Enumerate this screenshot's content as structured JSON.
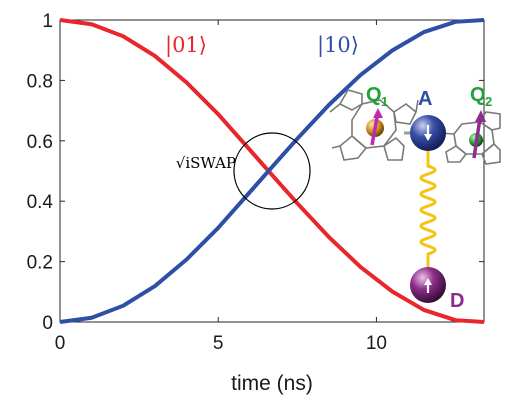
{
  "chart_data": {
    "type": "line",
    "xlabel": "time (ns)",
    "ylabel": "",
    "xlim": [
      0,
      13.4
    ],
    "ylim": [
      0,
      1
    ],
    "x_ticks": [
      0,
      5,
      10
    ],
    "y_ticks": [
      0,
      0.2,
      0.4,
      0.6,
      0.8,
      1
    ],
    "x_tick_labels": [
      "0",
      "5",
      "10"
    ],
    "y_tick_labels": [
      "0",
      "0.2",
      "0.4",
      "0.6",
      "0.8",
      "1"
    ],
    "grid": false,
    "series": [
      {
        "name": "|01⟩",
        "color": "#e8262b",
        "x": [
          0,
          1,
          2,
          3,
          4,
          5,
          6,
          6.7,
          7.5,
          8.5,
          9.5,
          10.5,
          11.5,
          12.5,
          13.4
        ],
        "values": [
          1,
          0.986,
          0.946,
          0.881,
          0.793,
          0.688,
          0.57,
          0.487,
          0.393,
          0.281,
          0.182,
          0.101,
          0.04,
          0.006,
          0.0
        ]
      },
      {
        "name": "|10⟩",
        "color": "#2d4fa6",
        "x": [
          0,
          1,
          2,
          3,
          4,
          5,
          6,
          6.7,
          7.5,
          8.5,
          9.5,
          10.5,
          11.5,
          12.5,
          13.4
        ],
        "values": [
          0,
          0.014,
          0.054,
          0.119,
          0.207,
          0.312,
          0.43,
          0.513,
          0.607,
          0.719,
          0.818,
          0.899,
          0.96,
          0.994,
          1.0
        ]
      }
    ],
    "annotations": [
      {
        "text": "√iSWAP",
        "x": 6.7,
        "y": 0.5,
        "marker": "circle"
      }
    ]
  },
  "inset": {
    "labels": {
      "q1_main": "Q",
      "q1_sub": "1",
      "q2_main": "Q",
      "q2_sub": "2",
      "a": "A",
      "d": "D"
    },
    "colors": {
      "q_label": "#1fa33a",
      "a_label": "#2d4fa6",
      "d_label": "#8a2a8c",
      "a_sphere": "#3a4ea8",
      "d_sphere": "#8e2e8a",
      "spring": "#f2c418"
    },
    "icons": [
      "spin-up-arrow-icon",
      "spin-down-arrow-icon",
      "porphyrin-molecule-icon"
    ]
  }
}
